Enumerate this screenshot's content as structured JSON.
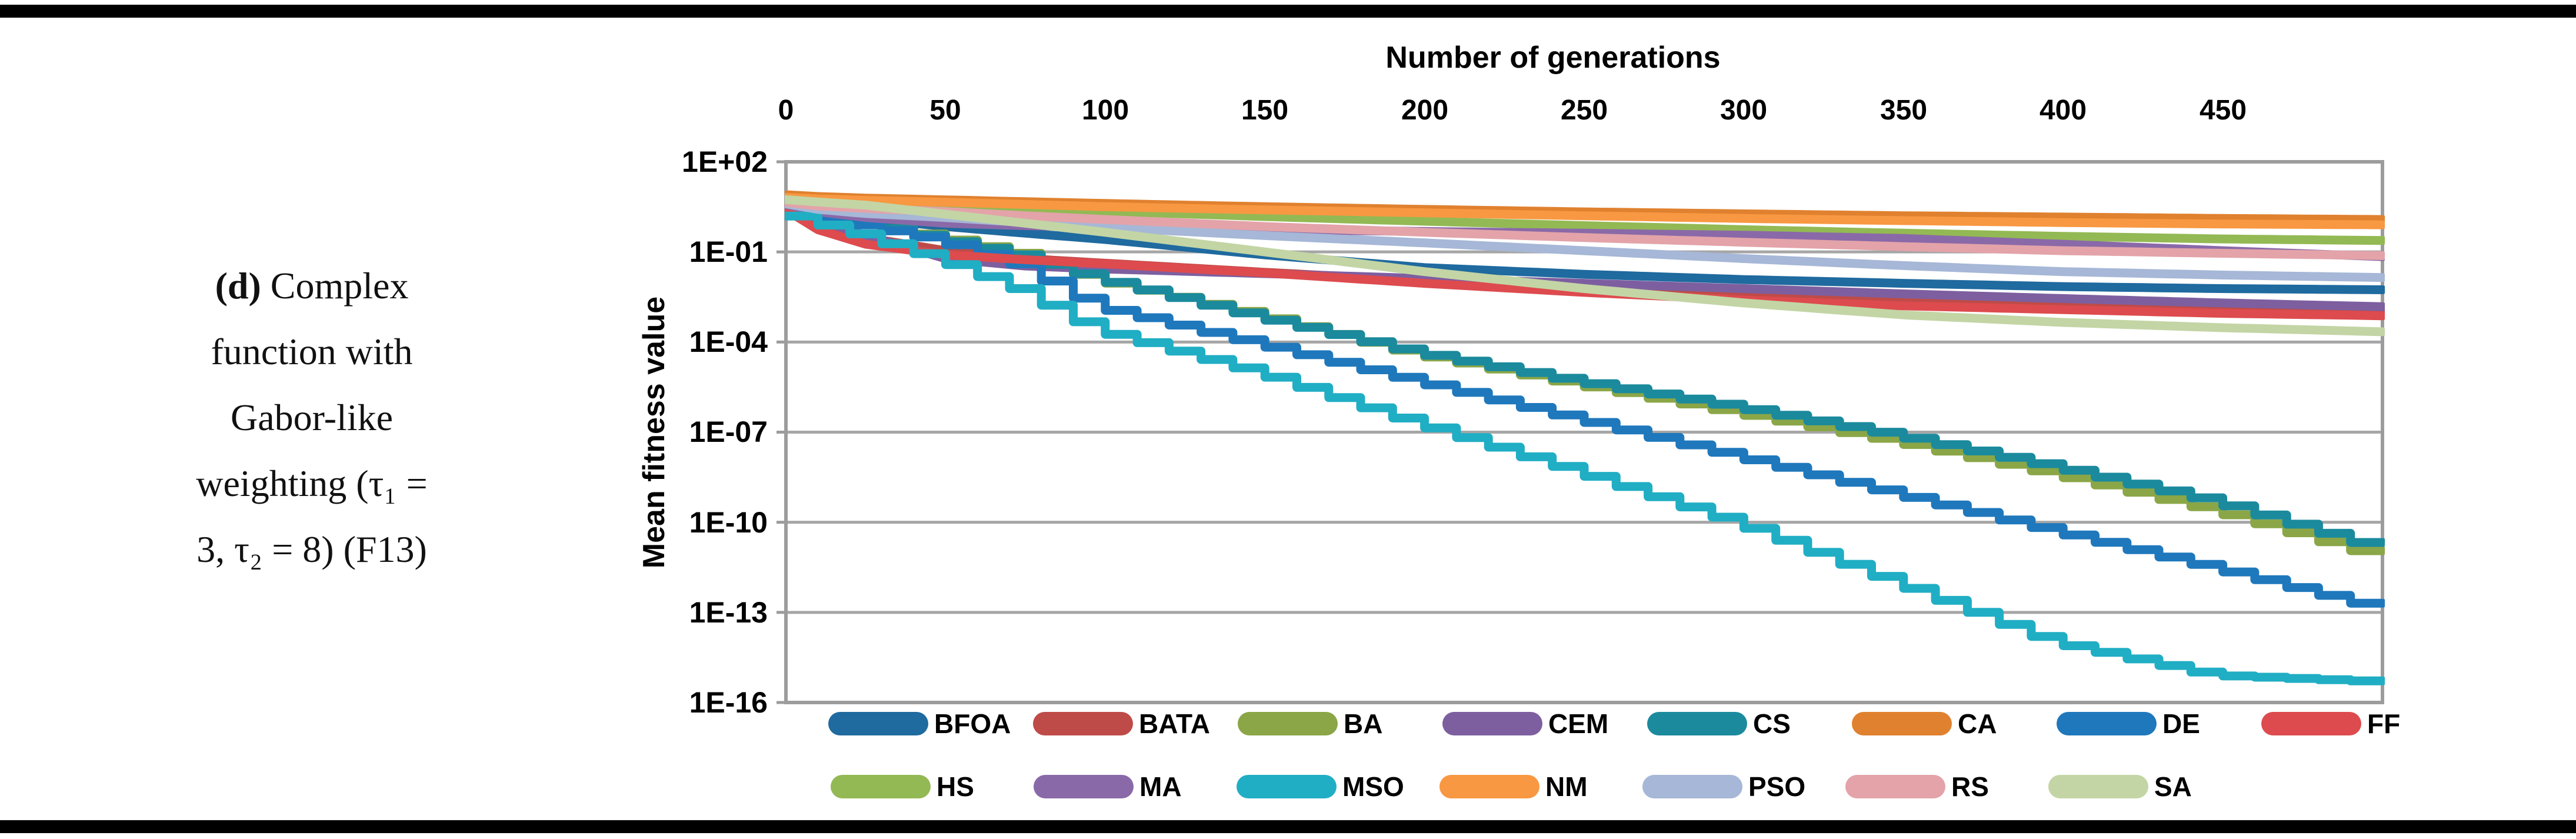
{
  "caption": {
    "label": "(d)",
    "line1_rest": " Complex",
    "lines": [
      "function with",
      "Gabor-like",
      "weighting (τ₁ =",
      "3, τ₂ = 8) (F13)"
    ]
  },
  "legend": {
    "rows": [
      [
        "BFOA",
        "BATA",
        "BA",
        "CEM",
        "CS",
        "CA",
        "DE",
        "FF"
      ],
      [
        "HS",
        "MA",
        "MSO",
        "NM",
        "PSO",
        "RS",
        "SA"
      ]
    ]
  },
  "chart_data": {
    "type": "line",
    "x_axis": {
      "title": "Number of generations",
      "min": 0,
      "max": 500,
      "ticks": [
        0,
        50,
        100,
        150,
        200,
        250,
        300,
        350,
        400,
        450
      ]
    },
    "y_axis": {
      "title": "Mean fitness value",
      "scale": "log",
      "tick_labels": [
        "1E+02",
        "1E-01",
        "1E-04",
        "1E-07",
        "1E-10",
        "1E-13",
        "1E-16"
      ],
      "tick_exponents": [
        2,
        -1,
        -4,
        -7,
        -10,
        -13,
        -16
      ]
    },
    "grid": "horizontal",
    "legend_position": "bottom",
    "colors": {
      "gridline": "#A6A6A6",
      "border": "#9C9C9C",
      "background": "#FFFFFF",
      "text": "#000000"
    },
    "sample_generations": [
      0,
      10,
      25,
      50,
      75,
      100,
      150,
      200,
      250,
      300,
      350,
      400,
      450,
      500
    ],
    "series": [
      {
        "name": "BFOA",
        "color": "#1F6A9F",
        "steps": false,
        "values": [
          3.5,
          2.2,
          1.3,
          0.7,
          0.42,
          0.26,
          0.08,
          0.03,
          0.018,
          0.012,
          0.009,
          0.007,
          0.006,
          0.0055
        ]
      },
      {
        "name": "BATA",
        "color": "#BE4B48",
        "steps": false,
        "values": [
          3.0,
          0.9,
          0.3,
          0.11,
          0.06,
          0.042,
          0.021,
          0.011,
          0.006,
          0.0035,
          0.0022,
          0.0016,
          0.0013,
          0.0011
        ]
      },
      {
        "name": "BA",
        "color": "#8AA647",
        "steps": true,
        "values": [
          2.6,
          1.6,
          0.9,
          0.32,
          0.09,
          0.012,
          0.0008,
          4e-05,
          4e-06,
          4.5e-07,
          5e-08,
          4e-09,
          2.5e-10,
          8e-12
        ]
      },
      {
        "name": "CEM",
        "color": "#7D5FA0",
        "steps": false,
        "values": [
          3.0,
          1.2,
          0.35,
          0.06,
          0.034,
          0.027,
          0.019,
          0.013,
          0.009,
          0.006,
          0.004,
          0.0028,
          0.002,
          0.0015
        ]
      },
      {
        "name": "CS",
        "color": "#1B8A9D",
        "steps": true,
        "values": [
          2.8,
          1.7,
          1.0,
          0.28,
          0.08,
          0.013,
          0.0007,
          4.5e-05,
          5e-06,
          7e-07,
          8e-08,
          7e-09,
          5e-10,
          1.5e-11
        ]
      },
      {
        "name": "CA",
        "color": "#E0812F",
        "steps": false,
        "values": [
          8.0,
          7.0,
          6.2,
          5.4,
          4.7,
          4.1,
          3.2,
          2.6,
          2.15,
          1.85,
          1.6,
          1.45,
          1.3,
          1.2
        ]
      },
      {
        "name": "DE",
        "color": "#1F78BC",
        "steps": true,
        "values": [
          2.4,
          1.5,
          0.8,
          0.25,
          0.04,
          0.0015,
          9e-05,
          5e-06,
          2.8e-07,
          1.6e-08,
          9e-10,
          5e-11,
          3e-12,
          1.5e-13
        ]
      },
      {
        "name": "FF",
        "color": "#DD4B4E",
        "steps": false,
        "values": [
          2.5,
          0.55,
          0.18,
          0.08,
          0.055,
          0.04,
          0.02,
          0.009,
          0.0045,
          0.0025,
          0.0016,
          0.0012,
          0.0009,
          0.00075
        ]
      },
      {
        "name": "HS",
        "color": "#93B954",
        "steps": false,
        "values": [
          5.0,
          4.4,
          3.9,
          3.2,
          2.7,
          2.25,
          1.5,
          1.05,
          0.75,
          0.55,
          0.42,
          0.33,
          0.27,
          0.24
        ]
      },
      {
        "name": "MA",
        "color": "#8A69A8",
        "steps": false,
        "values": [
          3.8,
          2.2,
          1.4,
          0.9,
          0.75,
          0.65,
          0.55,
          0.48,
          0.42,
          0.36,
          0.28,
          0.18,
          0.11,
          0.07
        ]
      },
      {
        "name": "MSO",
        "color": "#20AEC4",
        "steps": true,
        "values": [
          2.2,
          1.1,
          0.4,
          0.06,
          0.006,
          0.00025,
          1e-05,
          2e-07,
          5e-09,
          1e-10,
          1e-12,
          1e-14,
          8e-16,
          5e-16
        ]
      },
      {
        "name": "NM",
        "color": "#F89842",
        "steps": false,
        "values": [
          6.5,
          5.8,
          5.2,
          4.5,
          3.8,
          3.2,
          2.5,
          2.0,
          1.6,
          1.3,
          1.1,
          0.95,
          0.85,
          0.8
        ]
      },
      {
        "name": "PSO",
        "color": "#A6B7D7",
        "steps": false,
        "values": [
          4.0,
          2.6,
          1.9,
          1.4,
          0.95,
          0.65,
          0.35,
          0.2,
          0.11,
          0.06,
          0.035,
          0.022,
          0.017,
          0.014
        ]
      },
      {
        "name": "RS",
        "color": "#E3A3A9",
        "steps": false,
        "values": [
          4.5,
          3.4,
          2.8,
          2.2,
          1.6,
          1.2,
          0.7,
          0.45,
          0.3,
          0.21,
          0.15,
          0.11,
          0.09,
          0.075
        ]
      },
      {
        "name": "SA",
        "color": "#C3D5A5",
        "steps": false,
        "values": [
          5.5,
          4.6,
          3.6,
          1.8,
          0.9,
          0.45,
          0.1,
          0.022,
          0.006,
          0.002,
          0.0008,
          0.00045,
          0.0003,
          0.00022
        ]
      }
    ]
  }
}
